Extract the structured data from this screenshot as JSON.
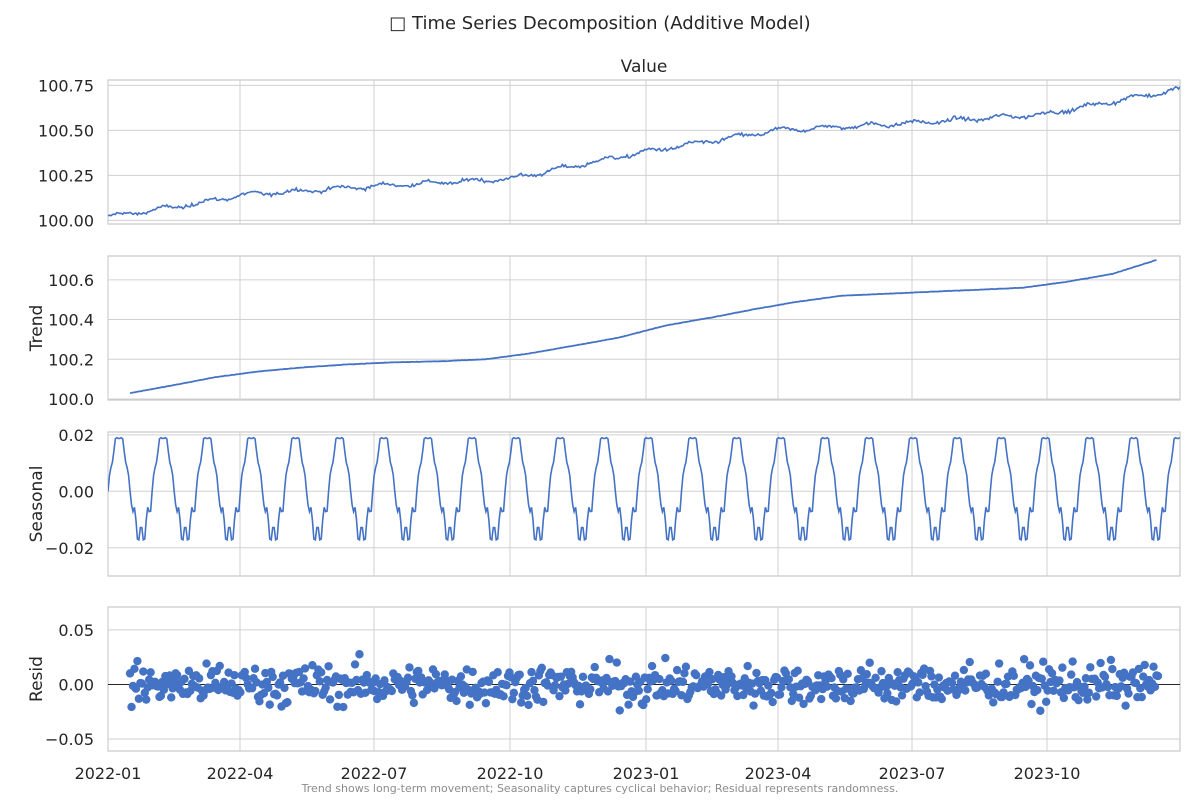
{
  "figure": {
    "title": "□ Time Series Decomposition (Additive Model)",
    "footnote": "Trend shows long-term movement; Seasonality captures cyclical behavior; Residual represents randomness."
  },
  "colors": {
    "line": "#4472c4",
    "grid": "#d0d0d0",
    "frame": "#c8c8c8",
    "text": "#262626",
    "footnote": "#8c8c8c",
    "zero_line": "#262626"
  },
  "chart_data": {
    "type": "line",
    "x_axis": {
      "start": "2022-01-01",
      "end": "2023-12-31",
      "tick_labels": [
        "2022-01",
        "2022-04",
        "2022-07",
        "2022-10",
        "2023-01",
        "2023-04",
        "2023-07",
        "2023-10"
      ]
    },
    "panels": [
      {
        "id": "value",
        "type": "line",
        "title": "Value",
        "ylabel": "",
        "ylim": [
          99.98,
          100.78
        ],
        "yticks": [
          "100.00",
          "100.25",
          "100.50",
          "100.75"
        ],
        "grid": true,
        "approx_level": [
          [
            "2022-01-01",
            100.02
          ],
          [
            "2022-03-01",
            100.09
          ],
          [
            "2022-04-01",
            100.14
          ],
          [
            "2022-07-01",
            100.19
          ],
          [
            "2022-10-01",
            100.23
          ],
          [
            "2023-01-01",
            100.38
          ],
          [
            "2023-04-01",
            100.5
          ],
          [
            "2023-07-01",
            100.54
          ],
          [
            "2023-10-01",
            100.59
          ],
          [
            "2023-12-31",
            100.73
          ]
        ],
        "seasonal_amplitude": 0.02,
        "noise_amplitude": 0.02
      },
      {
        "id": "trend",
        "type": "line",
        "title": "",
        "ylabel": "Trend",
        "ylim": [
          99.995,
          100.72
        ],
        "yticks": [
          "100.0",
          "100.2",
          "100.4",
          "100.6"
        ],
        "grid": true,
        "points": [
          [
            "2022-01-16",
            100.03
          ],
          [
            "2022-02-15",
            100.07
          ],
          [
            "2022-03-15",
            100.11
          ],
          [
            "2022-04-15",
            100.14
          ],
          [
            "2022-05-15",
            100.16
          ],
          [
            "2022-06-15",
            100.175
          ],
          [
            "2022-07-15",
            100.185
          ],
          [
            "2022-08-15",
            100.19
          ],
          [
            "2022-09-15",
            100.2
          ],
          [
            "2022-10-15",
            100.23
          ],
          [
            "2022-11-15",
            100.27
          ],
          [
            "2022-12-15",
            100.31
          ],
          [
            "2023-01-15",
            100.37
          ],
          [
            "2023-02-15",
            100.41
          ],
          [
            "2023-03-15",
            100.45
          ],
          [
            "2023-04-15",
            100.49
          ],
          [
            "2023-05-15",
            100.52
          ],
          [
            "2023-06-15",
            100.53
          ],
          [
            "2023-07-15",
            100.54
          ],
          [
            "2023-08-15",
            100.55
          ],
          [
            "2023-09-15",
            100.56
          ],
          [
            "2023-10-15",
            100.59
          ],
          [
            "2023-11-15",
            100.63
          ],
          [
            "2023-12-15",
            100.7
          ]
        ]
      },
      {
        "id": "seasonal",
        "type": "line",
        "title": "",
        "ylabel": "Seasonal",
        "ylim": [
          -0.03,
          0.021
        ],
        "yticks": [
          "−0.02",
          "0.00",
          "0.02"
        ],
        "grid": true,
        "period_days": 30,
        "amplitude_max": 0.019,
        "amplitude_min": -0.028
      },
      {
        "id": "resid",
        "type": "scatter",
        "title": "",
        "ylabel": "Resid",
        "ylim": [
          -0.061,
          0.071
        ],
        "yticks": [
          "−0.05",
          "0.00",
          "0.05"
        ],
        "grid": true,
        "zero_line": true,
        "spread": 0.05
      }
    ]
  }
}
